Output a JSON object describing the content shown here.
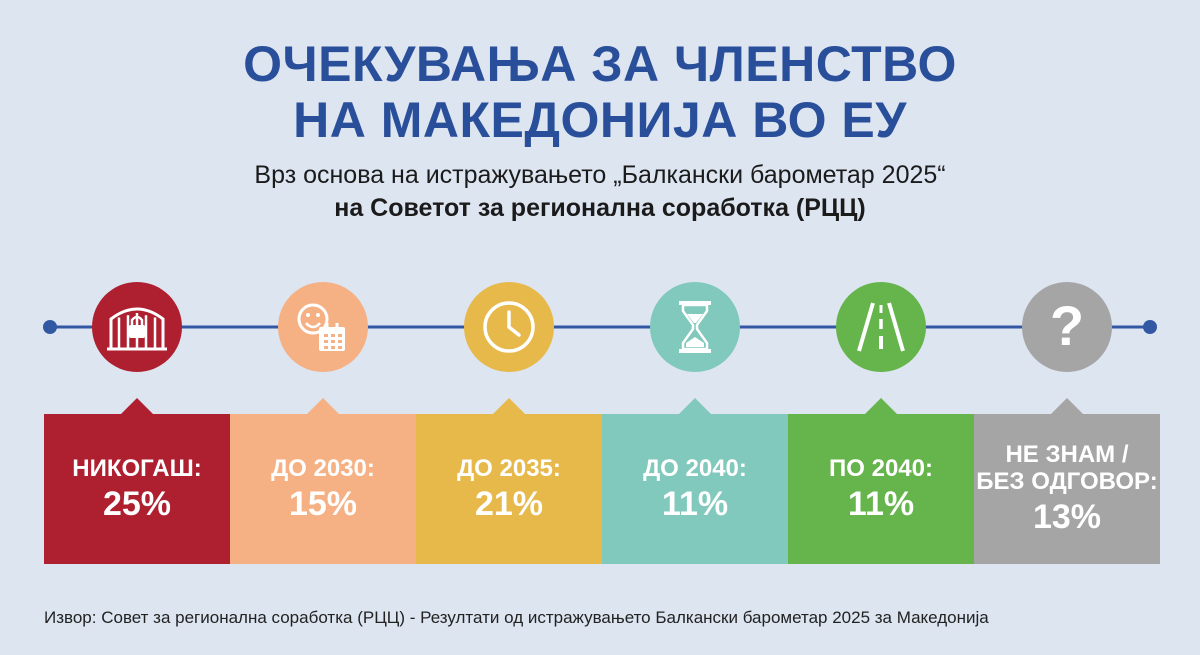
{
  "header": {
    "title_line1": "ОЧЕКУВАЊА ЗА ЧЛЕНСТВО",
    "title_line2": "НА МАКЕДОНИЈА ВО ЕУ",
    "subtitle_line1": "Врз основа на истражувањето „Балкански барометар 2025“",
    "subtitle_line2": "на Советот за регионална соработка (РЦЦ)"
  },
  "chart_data": {
    "type": "table",
    "categories": [
      "НИКОГАШ:",
      "ДО 2030:",
      "ДО 2035:",
      "ДО 2040:",
      "ПО 2040:",
      "НЕ ЗНАМ /\nБЕЗ ОДГОВОР:"
    ],
    "values": [
      25,
      15,
      21,
      11,
      11,
      13
    ],
    "value_labels": [
      "25%",
      "15%",
      "21%",
      "11%",
      "11%",
      "13%"
    ],
    "colors": [
      "#ae1f2f",
      "#f5b184",
      "#e7b84a",
      "#80c9bc",
      "#66b44c",
      "#a5a5a5"
    ],
    "icons": [
      "locked-gate-icon",
      "smiley-calendar-icon",
      "clock-icon",
      "hourglass-icon",
      "road-icon",
      "question-mark-icon"
    ],
    "timeline_color": "#3258a4"
  },
  "footer": {
    "source": "Извор: Совет за регионална соработка (РЦЦ) - Резултати од истражувањето Балкански барометар 2025 за Македонија"
  }
}
